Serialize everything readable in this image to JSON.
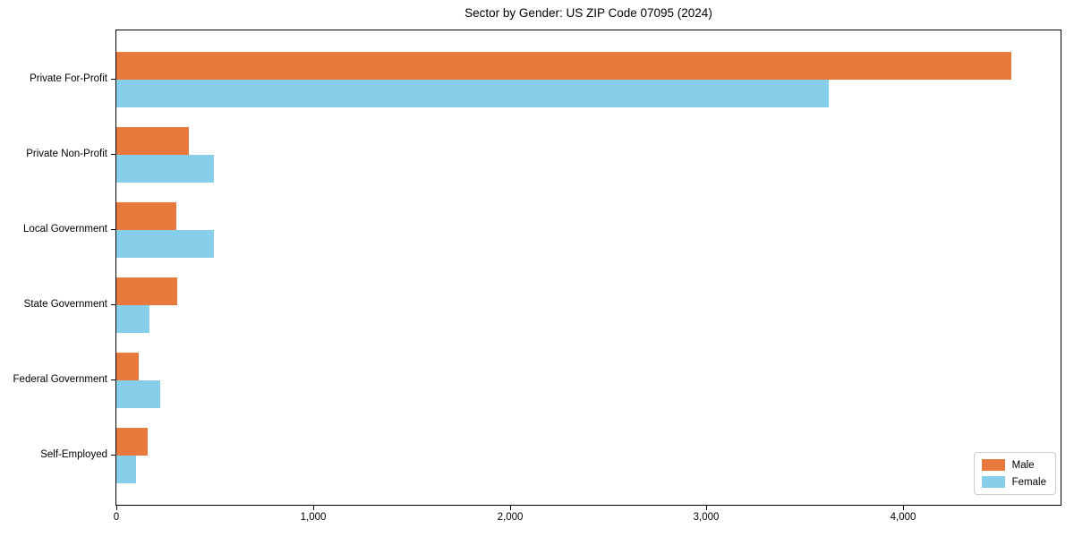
{
  "title": "Sector by Gender: US ZIP Code 07095 (2024)",
  "colors": {
    "male": "#e8793d",
    "female": "#87ceeb",
    "frame": "#000000",
    "background": "#ffffff",
    "legend_border": "#cccccc"
  },
  "legend": {
    "position": "lower right",
    "items": [
      {
        "label": "Male"
      },
      {
        "label": "Female"
      }
    ]
  },
  "chart_data": {
    "type": "bar",
    "orientation": "horizontal",
    "title": "Sector by Gender: US ZIP Code 07095 (2024)",
    "xlabel": "",
    "ylabel": "",
    "grid": false,
    "legend_position": "lower right",
    "categories": [
      "Private For-Profit",
      "Private Non-Profit",
      "Local Government",
      "State Government",
      "Federal Government",
      "Self-Employed"
    ],
    "series": [
      {
        "name": "Male",
        "color": "#e8793d",
        "values": [
          4550,
          370,
          305,
          310,
          112,
          160
        ]
      },
      {
        "name": "Female",
        "color": "#87ceeb",
        "values": [
          3620,
          495,
          495,
          170,
          225,
          98
        ]
      }
    ],
    "xlim": [
      0,
      4800
    ],
    "xticks": [
      {
        "value": 0,
        "label": "0"
      },
      {
        "value": 1000,
        "label": "1,000"
      },
      {
        "value": 2000,
        "label": "2,000"
      },
      {
        "value": 3000,
        "label": "3,000"
      },
      {
        "value": 4000,
        "label": "4,000"
      }
    ]
  }
}
